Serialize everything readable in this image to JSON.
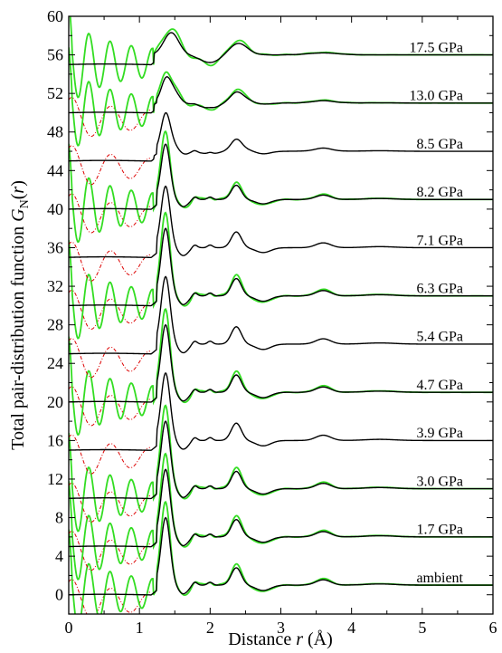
{
  "chart_data": {
    "type": "line",
    "xlabel_main": "Distance ",
    "xlabel_var": "r",
    "xlabel_unit": " (Å)",
    "ylabel_main": "Total pair-distribution function ",
    "ylabel_var": "G",
    "ylabel_sub": "N",
    "ylabel_arg_open": "(",
    "ylabel_arg": "r",
    "ylabel_arg_close": ")",
    "xlim": [
      0,
      6
    ],
    "ylim": [
      -2,
      60
    ],
    "x_ticks": [
      0,
      1,
      2,
      3,
      4,
      5,
      6
    ],
    "y_ticks": [
      0,
      4,
      8,
      12,
      16,
      20,
      24,
      28,
      32,
      36,
      40,
      44,
      48,
      52,
      56,
      60
    ],
    "colors": {
      "black": "#000000",
      "green": "#33dd22",
      "red": "#dd0000"
    },
    "peaks": {
      "first": {
        "r": 1.37,
        "height": 7.0
      },
      "second": {
        "r": 2.37,
        "height": 1.8
      },
      "third": {
        "r": 3.6,
        "height": 0.55
      }
    },
    "series": [
      {
        "label": "ambient",
        "offset": 0,
        "has_green": true,
        "has_red": true,
        "label_y": 1.3
      },
      {
        "label": "1.7 GPa",
        "offset": 5,
        "has_green": true,
        "has_red": true,
        "label_y": 6.3
      },
      {
        "label": "3.0 GPa",
        "offset": 10,
        "has_green": true,
        "has_red": true,
        "label_y": 11.3
      },
      {
        "label": "3.9 GPa",
        "offset": 15,
        "has_green": false,
        "has_red": true,
        "label_y": 16.3
      },
      {
        "label": "4.7 GPa",
        "offset": 20,
        "has_green": true,
        "has_red": true,
        "label_y": 21.3
      },
      {
        "label": "5.4 GPa",
        "offset": 25,
        "has_green": false,
        "has_red": true,
        "label_y": 26.3
      },
      {
        "label": "6.3 GPa",
        "offset": 30,
        "has_green": true,
        "has_red": true,
        "label_y": 31.3
      },
      {
        "label": "7.1 GPa",
        "offset": 35,
        "has_green": false,
        "has_red": true,
        "label_y": 36.3
      },
      {
        "label": "8.2 GPa",
        "offset": 40,
        "has_green": true,
        "has_red": true,
        "label_y": 41.3
      },
      {
        "label": "8.5 GPa",
        "offset": 45,
        "has_green": false,
        "has_red": true,
        "label_y": 46.3
      },
      {
        "label": "13.0 GPa",
        "offset": 50,
        "has_green": true,
        "has_red": true,
        "label_y": 51.3
      },
      {
        "label": "17.5 GPa",
        "offset": 55,
        "has_green": true,
        "has_red": false,
        "label_y": 56.3
      }
    ]
  }
}
